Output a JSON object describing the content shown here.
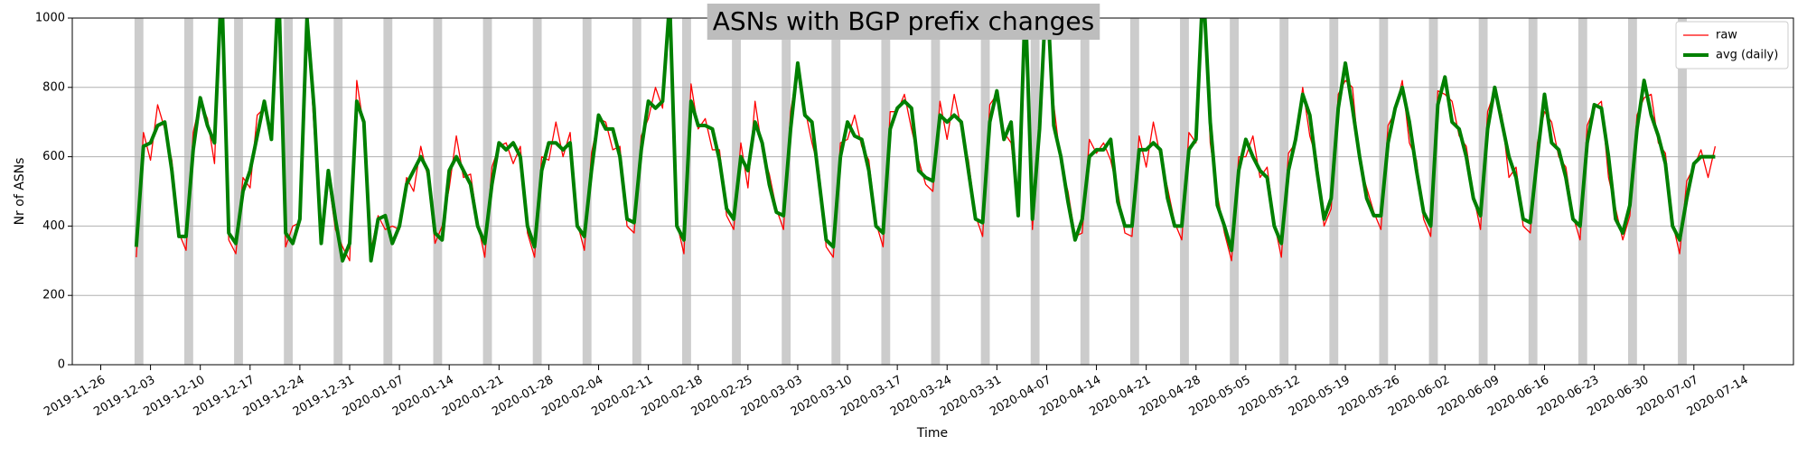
{
  "chart_data": {
    "type": "line",
    "title": "ASNs with BGP prefix changes",
    "xlabel": "Time",
    "ylabel": "Nr of ASNs",
    "x": [
      "2019-12-01",
      "2019-12-02",
      "2019-12-03",
      "2019-12-04",
      "2019-12-05",
      "2019-12-06",
      "2019-12-07",
      "2019-12-08",
      "2019-12-09",
      "2019-12-10",
      "2019-12-11",
      "2019-12-12",
      "2019-12-13",
      "2019-12-14",
      "2019-12-15",
      "2019-12-16",
      "2019-12-17",
      "2019-12-18",
      "2019-12-19",
      "2019-12-20",
      "2019-12-21",
      "2019-12-22",
      "2019-12-23",
      "2019-12-24",
      "2019-12-25",
      "2019-12-26",
      "2019-12-27",
      "2019-12-28",
      "2019-12-29",
      "2019-12-30",
      "2019-12-31",
      "2020-01-01",
      "2020-01-02",
      "2020-01-03",
      "2020-01-04",
      "2020-01-05",
      "2020-01-06",
      "2020-01-07",
      "2020-01-08",
      "2020-01-09",
      "2020-01-10",
      "2020-01-11",
      "2020-01-12",
      "2020-01-13",
      "2020-01-14",
      "2020-01-15",
      "2020-01-16",
      "2020-01-17",
      "2020-01-18",
      "2020-01-19",
      "2020-01-20",
      "2020-01-21",
      "2020-01-22",
      "2020-01-23",
      "2020-01-24",
      "2020-01-25",
      "2020-01-26",
      "2020-01-27",
      "2020-01-28",
      "2020-01-29",
      "2020-01-30",
      "2020-01-31",
      "2020-02-01",
      "2020-02-02",
      "2020-02-03",
      "2020-02-04",
      "2020-02-05",
      "2020-02-06",
      "2020-02-07",
      "2020-02-08",
      "2020-02-09",
      "2020-02-10",
      "2020-02-11",
      "2020-02-12",
      "2020-02-13",
      "2020-02-14",
      "2020-02-15",
      "2020-02-16",
      "2020-02-17",
      "2020-02-18",
      "2020-02-19",
      "2020-02-20",
      "2020-02-21",
      "2020-02-22",
      "2020-02-23",
      "2020-02-24",
      "2020-02-25",
      "2020-02-26",
      "2020-02-27",
      "2020-02-28",
      "2020-02-29",
      "2020-03-01",
      "2020-03-02",
      "2020-03-03",
      "2020-03-04",
      "2020-03-05",
      "2020-03-06",
      "2020-03-07",
      "2020-03-08",
      "2020-03-09",
      "2020-03-10",
      "2020-03-11",
      "2020-03-12",
      "2020-03-13",
      "2020-03-14",
      "2020-03-15",
      "2020-03-16",
      "2020-03-17",
      "2020-03-18",
      "2020-03-19",
      "2020-03-20",
      "2020-03-21",
      "2020-03-22",
      "2020-03-23",
      "2020-03-24",
      "2020-03-25",
      "2020-03-26",
      "2020-03-27",
      "2020-03-28",
      "2020-03-29",
      "2020-03-30",
      "2020-03-31",
      "2020-04-01",
      "2020-04-02",
      "2020-04-03",
      "2020-04-04",
      "2020-04-05",
      "2020-04-06",
      "2020-04-07",
      "2020-04-08",
      "2020-04-09",
      "2020-04-10",
      "2020-04-11",
      "2020-04-12",
      "2020-04-13",
      "2020-04-14",
      "2020-04-15",
      "2020-04-16",
      "2020-04-17",
      "2020-04-18",
      "2020-04-19",
      "2020-04-20",
      "2020-04-21",
      "2020-04-22",
      "2020-04-23",
      "2020-04-24",
      "2020-04-25",
      "2020-04-26",
      "2020-04-27",
      "2020-04-28",
      "2020-04-29",
      "2020-04-30",
      "2020-05-01",
      "2020-05-02",
      "2020-05-03",
      "2020-05-04",
      "2020-05-05",
      "2020-05-06",
      "2020-05-07",
      "2020-05-08",
      "2020-05-09",
      "2020-05-10",
      "2020-05-11",
      "2020-05-12",
      "2020-05-13",
      "2020-05-14",
      "2020-05-15",
      "2020-05-16",
      "2020-05-17",
      "2020-05-18",
      "2020-05-19",
      "2020-05-20",
      "2020-05-21",
      "2020-05-22",
      "2020-05-23",
      "2020-05-24",
      "2020-05-25",
      "2020-05-26",
      "2020-05-27",
      "2020-05-28",
      "2020-05-29",
      "2020-05-30",
      "2020-05-31",
      "2020-06-01",
      "2020-06-02",
      "2020-06-03",
      "2020-06-04",
      "2020-06-05",
      "2020-06-06",
      "2020-06-07",
      "2020-06-08",
      "2020-06-09",
      "2020-06-10",
      "2020-06-11",
      "2020-06-12",
      "2020-06-13",
      "2020-06-14",
      "2020-06-15",
      "2020-06-16",
      "2020-06-17",
      "2020-06-18",
      "2020-06-19",
      "2020-06-20",
      "2020-06-21",
      "2020-06-22",
      "2020-06-23",
      "2020-06-24",
      "2020-06-25",
      "2020-06-26",
      "2020-06-27",
      "2020-06-28",
      "2020-06-29",
      "2020-06-30",
      "2020-07-01",
      "2020-07-02",
      "2020-07-03",
      "2020-07-04",
      "2020-07-05",
      "2020-07-06",
      "2020-07-07",
      "2020-07-08",
      "2020-07-09",
      "2020-07-10"
    ],
    "series": [
      {
        "name": "raw",
        "color": "#ff0000",
        "width": 1.3,
        "values": [
          310,
          670,
          590,
          750,
          680,
          590,
          380,
          330,
          670,
          760,
          710,
          580,
          1130,
          360,
          320,
          540,
          510,
          720,
          740,
          680,
          1110,
          340,
          400,
          410,
          1020,
          680,
          380,
          540,
          390,
          340,
          300,
          820,
          680,
          330,
          430,
          390,
          400,
          390,
          540,
          500,
          630,
          540,
          350,
          400,
          510,
          660,
          540,
          550,
          410,
          310,
          570,
          630,
          640,
          580,
          630,
          380,
          310,
          600,
          590,
          700,
          600,
          670,
          410,
          330,
          610,
          710,
          700,
          620,
          630,
          400,
          380,
          660,
          710,
          800,
          740,
          1080,
          410,
          320,
          810,
          680,
          710,
          620,
          620,
          430,
          390,
          640,
          510,
          760,
          620,
          550,
          450,
          390,
          730,
          860,
          740,
          640,
          560,
          340,
          310,
          640,
          650,
          720,
          630,
          590,
          410,
          340,
          730,
          730,
          780,
          680,
          590,
          520,
          500,
          760,
          650,
          780,
          680,
          590,
          430,
          370,
          750,
          780,
          670,
          640,
          460,
          1030,
          390,
          720,
          1050,
          750,
          580,
          500,
          370,
          380,
          650,
          610,
          640,
          590,
          500,
          380,
          370,
          660,
          570,
          700,
          600,
          510,
          410,
          360,
          670,
          640,
          1120,
          640,
          490,
          380,
          300,
          600,
          600,
          660,
          540,
          570,
          410,
          310,
          610,
          640,
          800,
          660,
          590,
          400,
          450,
          780,
          820,
          800,
          580,
          510,
          440,
          390,
          690,
          730,
          820,
          640,
          590,
          420,
          370,
          790,
          780,
          760,
          660,
          630,
          490,
          390,
          730,
          790,
          720,
          540,
          570,
          400,
          380,
          640,
          730,
          700,
          600,
          570,
          430,
          360,
          690,
          740,
          760,
          540,
          450,
          360,
          430,
          720,
          770,
          780,
          640,
          610,
          410,
          320,
          530,
          570,
          620,
          540,
          630
        ]
      },
      {
        "name": "avg (daily)",
        "color": "#008000",
        "width": 4,
        "values": [
          340,
          630,
          640,
          690,
          700,
          560,
          370,
          370,
          620,
          770,
          690,
          640,
          1100,
          380,
          350,
          500,
          560,
          660,
          760,
          650,
          1100,
          380,
          350,
          420,
          1000,
          740,
          350,
          560,
          420,
          300,
          350,
          760,
          700,
          300,
          420,
          430,
          350,
          400,
          520,
          560,
          600,
          560,
          380,
          360,
          560,
          600,
          560,
          520,
          400,
          350,
          520,
          640,
          620,
          640,
          600,
          400,
          340,
          560,
          640,
          640,
          620,
          640,
          400,
          370,
          560,
          720,
          680,
          680,
          600,
          420,
          410,
          620,
          760,
          740,
          760,
          1050,
          400,
          360,
          760,
          690,
          690,
          680,
          590,
          450,
          420,
          600,
          560,
          700,
          640,
          520,
          440,
          430,
          680,
          870,
          720,
          700,
          530,
          360,
          340,
          600,
          700,
          660,
          650,
          560,
          400,
          380,
          680,
          740,
          760,
          740,
          560,
          540,
          530,
          720,
          700,
          720,
          700,
          560,
          420,
          410,
          700,
          790,
          650,
          700,
          430,
          1050,
          420,
          680,
          1100,
          690,
          600,
          470,
          360,
          420,
          600,
          620,
          620,
          650,
          470,
          400,
          400,
          620,
          620,
          640,
          620,
          480,
          400,
          400,
          620,
          650,
          1100,
          700,
          460,
          400,
          330,
          560,
          650,
          600,
          560,
          540,
          400,
          350,
          560,
          650,
          780,
          720,
          560,
          420,
          480,
          740,
          870,
          740,
          600,
          480,
          430,
          430,
          640,
          740,
          800,
          700,
          560,
          440,
          400,
          750,
          830,
          700,
          680,
          600,
          480,
          430,
          680,
          800,
          700,
          600,
          540,
          420,
          410,
          600,
          780,
          640,
          620,
          540,
          420,
          400,
          640,
          750,
          740,
          600,
          420,
          380,
          460,
          680,
          820,
          720,
          660,
          580,
          400,
          360,
          480,
          580,
          600,
          600,
          600
        ]
      }
    ],
    "xlim": [
      "2019-11-22",
      "2020-07-21"
    ],
    "xticks": [
      "2019-11-26",
      "2019-12-03",
      "2019-12-10",
      "2019-12-17",
      "2019-12-24",
      "2019-12-31",
      "2020-01-07",
      "2020-01-14",
      "2020-01-21",
      "2020-01-28",
      "2020-02-04",
      "2020-02-11",
      "2020-02-18",
      "2020-02-25",
      "2020-03-03",
      "2020-03-10",
      "2020-03-17",
      "2020-03-24",
      "2020-03-31",
      "2020-04-07",
      "2020-04-14",
      "2020-04-21",
      "2020-04-28",
      "2020-05-05",
      "2020-05-12",
      "2020-05-19",
      "2020-05-26",
      "2020-06-02",
      "2020-06-09",
      "2020-06-16",
      "2020-06-23",
      "2020-06-30",
      "2020-07-07",
      "2020-07-14"
    ],
    "ylim": [
      0,
      1000
    ],
    "yticks": [
      0,
      200,
      400,
      600,
      800,
      1000
    ],
    "grid": "y",
    "weekend_shading": "#cccccc",
    "legend": "upper right"
  }
}
